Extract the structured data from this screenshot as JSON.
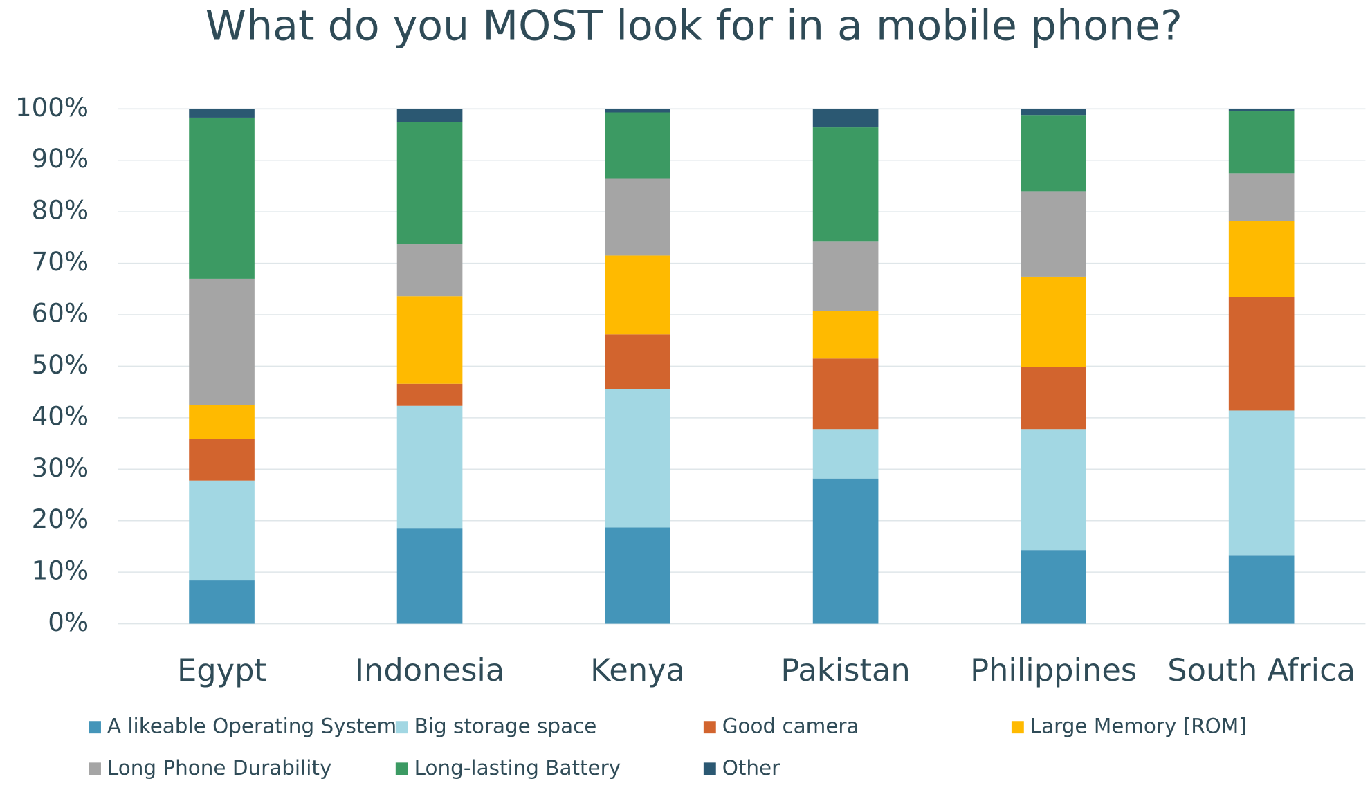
{
  "chart_data": {
    "type": "stacked_bar",
    "title": "What do you MOST look for in a mobile phone?",
    "categories": [
      "Egypt",
      "Indonesia",
      "Kenya",
      "Pakistan",
      "Philippines",
      "South Africa"
    ],
    "series": [
      {
        "name": "A likeable Operating System",
        "color": "#4495b9",
        "values": [
          8.4,
          18.6,
          18.7,
          28.2,
          14.3,
          13.2
        ]
      },
      {
        "name": "Big storage space",
        "color": "#a2d7e3",
        "values": [
          19.4,
          23.7,
          26.8,
          9.6,
          23.5,
          28.2
        ]
      },
      {
        "name": "Good camera",
        "color": "#d2642e",
        "values": [
          8.1,
          4.3,
          10.7,
          13.7,
          12.0,
          22.0
        ]
      },
      {
        "name": "Large Memory [ROM]",
        "color": "#ffba00",
        "values": [
          6.5,
          17.0,
          15.3,
          9.3,
          17.6,
          14.8
        ]
      },
      {
        "name": "Long Phone Durability",
        "color": "#a5a5a5",
        "values": [
          24.6,
          10.1,
          14.9,
          13.4,
          16.6,
          9.3
        ]
      },
      {
        "name": "Long-lasting Battery",
        "color": "#3c9a63",
        "values": [
          31.3,
          23.7,
          12.9,
          22.2,
          14.8,
          12.0
        ]
      },
      {
        "name": "Other",
        "color": "#2b5872",
        "values": [
          1.7,
          2.6,
          0.7,
          3.6,
          1.2,
          0.5
        ]
      }
    ],
    "ylim": [
      0,
      100
    ],
    "yticks": [
      {
        "value": 0,
        "label": "0%"
      },
      {
        "value": 10,
        "label": "10%"
      },
      {
        "value": 20,
        "label": "20%"
      },
      {
        "value": 30,
        "label": "30%"
      },
      {
        "value": 40,
        "label": "40%"
      },
      {
        "value": 50,
        "label": "50%"
      },
      {
        "value": 60,
        "label": "60%"
      },
      {
        "value": 70,
        "label": "70%"
      },
      {
        "value": 80,
        "label": "80%"
      },
      {
        "value": 90,
        "label": "90%"
      },
      {
        "value": 100,
        "label": "100%"
      }
    ],
    "grid": true,
    "legend": "bottom"
  }
}
